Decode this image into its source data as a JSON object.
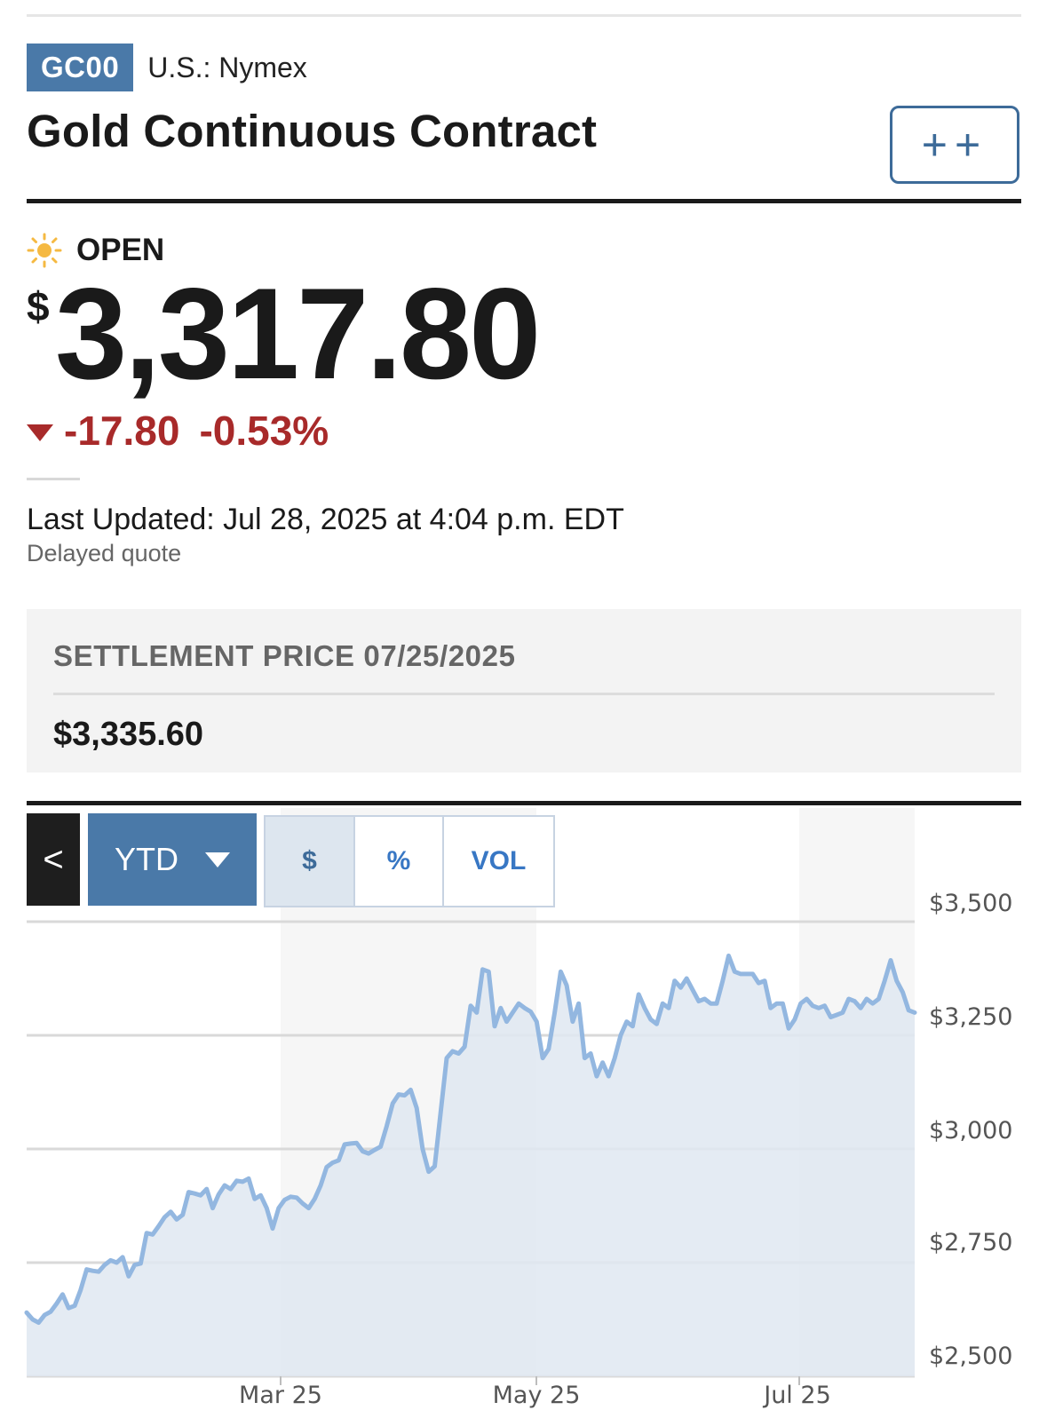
{
  "header": {
    "ticker": "GC00",
    "exchange": "U.S.: Nymex",
    "title": "Gold Continuous Contract",
    "watchlist_label": "++"
  },
  "quote": {
    "status": "OPEN",
    "currency_symbol": "$",
    "price": "3,317.80",
    "change": "-17.80",
    "change_pct": "-0.53%",
    "last_updated": "Last Updated: Jul 28, 2025 at 4:04 p.m. EDT",
    "delay_note": "Delayed quote"
  },
  "settlement": {
    "label": "SETTLEMENT PRICE 07/25/2025",
    "value": "$3,335.60"
  },
  "chart_controls": {
    "back_label": "<",
    "range_label": "YTD",
    "segments": [
      "$",
      "%",
      "VOL"
    ],
    "active_segment": 0
  },
  "colors": {
    "accent": "#4a79a8",
    "negative": "#a82a2a",
    "line": "#93b7e0",
    "fill": "#dfe8f1"
  },
  "chart_data": {
    "type": "area",
    "title": "",
    "xlabel": "",
    "ylabel": "",
    "ylim": [
      2500,
      3500
    ],
    "y_ticks": [
      "$3,500",
      "$3,250",
      "$3,000",
      "$2,750",
      "$2,500"
    ],
    "y_tick_values": [
      3500,
      3250,
      3000,
      2750,
      2500
    ],
    "x_ticks": [
      "Mar 25",
      "May 25",
      "Jul 25"
    ],
    "grid": true,
    "series": [
      {
        "values": [
          2640,
          2625,
          2618,
          2635,
          2642,
          2660,
          2680,
          2650,
          2655,
          2690,
          2735,
          2732,
          2730,
          2745,
          2755,
          2750,
          2762,
          2720,
          2745,
          2748,
          2815,
          2812,
          2830,
          2850,
          2862,
          2845,
          2855,
          2905,
          2902,
          2898,
          2912,
          2870,
          2900,
          2920,
          2912,
          2930,
          2928,
          2935,
          2890,
          2898,
          2870,
          2825,
          2870,
          2888,
          2895,
          2893,
          2880,
          2870,
          2890,
          2920,
          2960,
          2970,
          2975,
          3010,
          3012,
          3013,
          2995,
          2990,
          2998,
          3005,
          3050,
          3100,
          3120,
          3118,
          3130,
          3090,
          3000,
          2950,
          2962,
          3080,
          3200,
          3215,
          3210,
          3225,
          3315,
          3300,
          3395,
          3390,
          3270,
          3310,
          3280,
          3300,
          3320,
          3310,
          3302,
          3280,
          3200,
          3220,
          3300,
          3390,
          3360,
          3280,
          3320,
          3200,
          3210,
          3160,
          3190,
          3160,
          3200,
          3250,
          3280,
          3270,
          3340,
          3310,
          3285,
          3275,
          3320,
          3310,
          3370,
          3355,
          3375,
          3350,
          3325,
          3330,
          3320,
          3320,
          3370,
          3425,
          3390,
          3385,
          3385,
          3385,
          3365,
          3370,
          3310,
          3320,
          3320,
          3265,
          3285,
          3320,
          3330,
          3315,
          3310,
          3315,
          3290,
          3295,
          3300,
          3330,
          3325,
          3310,
          3330,
          3320,
          3330,
          3370,
          3415,
          3370,
          3345,
          3305,
          3300
        ]
      }
    ]
  }
}
